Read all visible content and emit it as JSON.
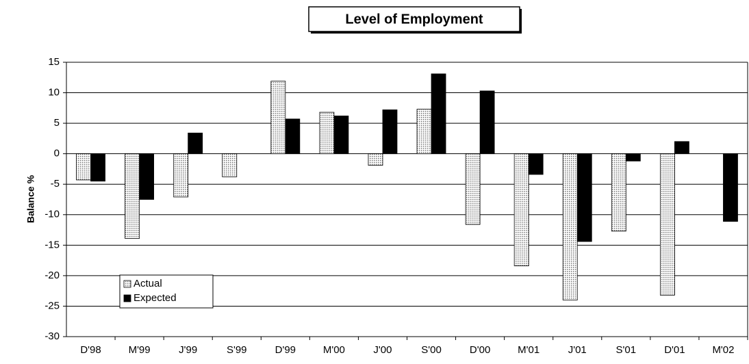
{
  "chart_data": {
    "type": "bar",
    "title": "Level of Employment",
    "y_label": "Balance %",
    "categories": [
      "D'98",
      "M'99",
      "J'99",
      "S'99",
      "D'99",
      "M'00",
      "J'00",
      "S'00",
      "D'00",
      "M'01",
      "J'01",
      "S'01",
      "D'01",
      "M'02"
    ],
    "series": [
      {
        "name": "Actual",
        "color": "#c8c8c8",
        "values": [
          -4.3,
          -13.9,
          -7.1,
          -3.8,
          11.9,
          6.8,
          -1.9,
          7.3,
          -11.6,
          -18.4,
          -24.0,
          -12.7,
          -23.2,
          null
        ]
      },
      {
        "name": "Expected",
        "color": "#000000",
        "values": [
          -4.5,
          -7.5,
          3.4,
          null,
          5.7,
          6.2,
          7.2,
          13.1,
          10.3,
          -3.4,
          -14.4,
          -1.2,
          2.0,
          -11.1
        ]
      }
    ],
    "ylim": [
      -30,
      15
    ],
    "yticks": [
      -30,
      -25,
      -20,
      -15,
      -10,
      -5,
      0,
      5,
      10,
      15
    ],
    "grid": true,
    "legend": "lower-left"
  }
}
